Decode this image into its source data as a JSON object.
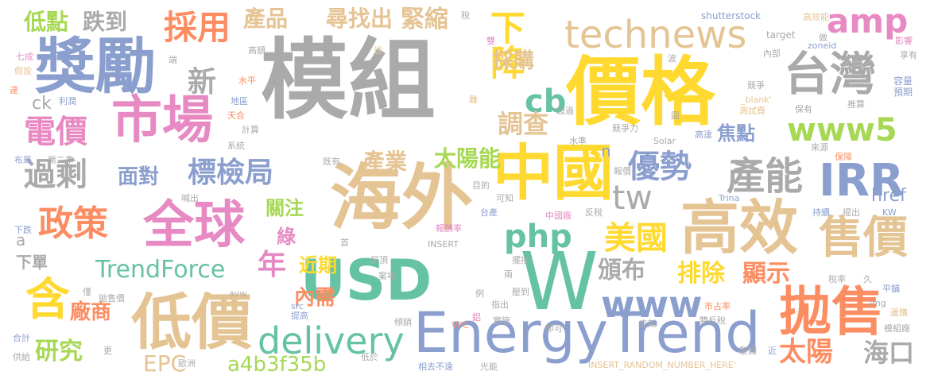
{
  "colors": {
    "gray": "#aaaaaa",
    "blue": "#8b9fcf",
    "green": "#66c2a5",
    "pink": "#e78ac3",
    "orange": "#fc8d62",
    "yellow": "#ffd92f",
    "tan": "#e5c494",
    "lime": "#a6d854"
  },
  "words": [
    {
      "text": "模組",
      "color": "gray"
    },
    {
      "text": "價格",
      "color": "yellow"
    },
    {
      "text": "海外",
      "color": "tan"
    },
    {
      "text": "中國",
      "color": "yellow"
    },
    {
      "text": "USD",
      "color": "green"
    },
    {
      "text": "W",
      "color": "green"
    },
    {
      "text": "EnergyTrend",
      "color": "blue"
    },
    {
      "text": "獎勵",
      "color": "blue"
    },
    {
      "text": "市場",
      "color": "pink"
    },
    {
      "text": "全球",
      "color": "pink"
    },
    {
      "text": "低價",
      "color": "tan"
    },
    {
      "text": "高效",
      "color": "tan"
    },
    {
      "text": "拋售",
      "color": "orange"
    },
    {
      "text": "technews",
      "color": "tan"
    },
    {
      "text": "台灣",
      "color": "gray"
    },
    {
      "text": "IRR",
      "color": "blue"
    },
    {
      "text": "售價",
      "color": "tan"
    },
    {
      "text": "www5",
      "color": "lime"
    },
    {
      "text": "產能",
      "color": "gray"
    },
    {
      "text": "delivery",
      "color": "green"
    },
    {
      "text": "www",
      "color": "blue"
    },
    {
      "text": "政策",
      "color": "orange"
    },
    {
      "text": "電價",
      "color": "pink"
    },
    {
      "text": "過剩",
      "color": "gray"
    },
    {
      "text": "含",
      "color": "yellow"
    },
    {
      "text": "amp",
      "color": "pink"
    },
    {
      "text": "php",
      "color": "green"
    },
    {
      "text": "優勢",
      "color": "blue"
    },
    {
      "text": "標檢局",
      "color": "blue"
    },
    {
      "text": "採用",
      "color": "orange"
    },
    {
      "text": "下降",
      "color": "yellow"
    },
    {
      "text": "tw",
      "color": "gray"
    },
    {
      "text": "美國",
      "color": "yellow"
    },
    {
      "text": "cb",
      "color": "green"
    },
    {
      "text": "TrendForce",
      "color": "green"
    },
    {
      "text": "年",
      "color": "pink"
    },
    {
      "text": "太陽",
      "color": "orange"
    },
    {
      "text": "新",
      "color": "gray"
    },
    {
      "text": "產品",
      "color": "tan"
    },
    {
      "text": "尋找出",
      "color": "tan"
    },
    {
      "text": "緊縮",
      "color": "tan"
    },
    {
      "text": "低點",
      "color": "lime"
    },
    {
      "text": "跌到",
      "color": "gray"
    },
    {
      "text": "調查",
      "color": "tan"
    },
    {
      "text": "採購",
      "color": "tan"
    },
    {
      "text": "焦點",
      "color": "blue"
    },
    {
      "text": "面對",
      "color": "blue"
    },
    {
      "text": "產業",
      "color": "tan"
    },
    {
      "text": "太陽能",
      "color": "lime"
    },
    {
      "text": "頒布",
      "color": "gray"
    },
    {
      "text": "排除",
      "color": "yellow"
    },
    {
      "text": "顯示",
      "color": "orange"
    },
    {
      "text": "內需",
      "color": "orange"
    },
    {
      "text": "廠商",
      "color": "orange"
    },
    {
      "text": "研究",
      "color": "lime"
    },
    {
      "text": "EPC",
      "color": "tan"
    },
    {
      "text": "a4b3f35b",
      "color": "lime"
    },
    {
      "text": "海口",
      "color": "gray"
    },
    {
      "text": "近期",
      "color": "yellow"
    },
    {
      "text": "關注",
      "color": "lime"
    },
    {
      "text": "綠",
      "color": "pink"
    },
    {
      "text": "href",
      "color": "blue"
    },
    {
      "text": "n",
      "color": "blue"
    },
    {
      "text": "ck",
      "color": "gray"
    },
    {
      "text": "a",
      "color": "gray"
    },
    {
      "text": "下單",
      "color": "gray"
    },
    {
      "text": "shutterstock",
      "color": "blue"
    },
    {
      "text": "高效能",
      "color": "tan"
    },
    {
      "text": "zoneid",
      "color": "blue"
    },
    {
      "text": "target",
      "color": "gray"
    },
    {
      "text": "做",
      "color": "gray"
    },
    {
      "text": "影響",
      "color": "pink"
    },
    {
      "text": "享有",
      "color": "gray"
    },
    {
      "text": "容量",
      "color": "blue"
    },
    {
      "text": "預期",
      "color": "blue"
    },
    {
      "text": "推算",
      "color": "gray"
    },
    {
      "text": "測試費",
      "color": "tan"
    },
    {
      "text": "_blank'",
      "color": "tan"
    },
    {
      "text": "保有",
      "color": "gray"
    },
    {
      "text": "高達",
      "color": "blue"
    },
    {
      "text": "來源",
      "color": "gray"
    },
    {
      "text": "保障",
      "color": "orange"
    },
    {
      "text": "持續",
      "color": "blue"
    },
    {
      "text": "提出",
      "color": "gray"
    },
    {
      "text": "KW",
      "color": "blue"
    },
    {
      "text": "平舖",
      "color": "blue"
    },
    {
      "text": "蘆購",
      "color": "tan"
    },
    {
      "text": "模組廠",
      "color": "gray"
    },
    {
      "text": "稅",
      "color": "gray"
    },
    {
      "text": "送",
      "color": "tan"
    },
    {
      "text": "雙",
      "color": "pink"
    },
    {
      "text": "內部",
      "color": "gray"
    },
    {
      "text": "波",
      "color": "gray"
    },
    {
      "text": "競爭",
      "color": "gray"
    },
    {
      "text": "高額",
      "color": "gray"
    },
    {
      "text": "七成",
      "color": "pink"
    },
    {
      "text": "端",
      "color": "gray"
    },
    {
      "text": "假設",
      "color": "tan"
    },
    {
      "text": "水平",
      "color": "orange"
    },
    {
      "text": "達",
      "color": "orange"
    },
    {
      "text": "利潤",
      "color": "blue"
    },
    {
      "text": "地區",
      "color": "blue"
    },
    {
      "text": "天合",
      "color": "orange"
    },
    {
      "text": "計算",
      "color": "gray"
    },
    {
      "text": "系統",
      "color": "gray"
    },
    {
      "text": "布局",
      "color": "blue"
    },
    {
      "text": "第二季",
      "color": "gray"
    },
    {
      "text": "超過",
      "color": "gray"
    },
    {
      "text": "競爭力",
      "color": "gray"
    },
    {
      "text": "Solar",
      "color": "gray"
    },
    {
      "text": "水準",
      "color": "gray"
    },
    {
      "text": "難",
      "color": "tan"
    },
    {
      "text": "圖",
      "color": "gray"
    },
    {
      "text": "既有",
      "color": "gray"
    },
    {
      "text": "報價",
      "color": "gray"
    },
    {
      "text": "Trina",
      "color": "blue"
    },
    {
      "text": "喊出",
      "color": "gray"
    },
    {
      "text": "目的",
      "color": "gray"
    },
    {
      "text": "可知",
      "color": "gray"
    },
    {
      "text": "反稅",
      "color": "gray"
    },
    {
      "text": "中國廠",
      "color": "pink"
    },
    {
      "text": "台產",
      "color": "blue"
    },
    {
      "text": "報酬率",
      "color": "pink"
    },
    {
      "text": "下跌",
      "color": "blue"
    },
    {
      "text": "INSERT",
      "color": "gray"
    },
    {
      "text": "首",
      "color": "gray"
    },
    {
      "text": "屋頂",
      "color": "gray"
    },
    {
      "text": "擺接",
      "color": "gray"
    },
    {
      "text": "案場",
      "color": "gray"
    },
    {
      "text": "兩",
      "color": "gray"
    },
    {
      "text": "壓到",
      "color": "gray"
    },
    {
      "text": "稅率",
      "color": "gray"
    },
    {
      "text": "久",
      "color": "gray"
    },
    {
      "text": "img",
      "color": "gray"
    },
    {
      "text": "僅",
      "color": "gray"
    },
    {
      "text": "拋售價",
      "color": "gray"
    },
    {
      "text": "avw",
      "color": "gray"
    },
    {
      "text": "例",
      "color": "gray"
    },
    {
      "text": "指出",
      "color": "gray"
    },
    {
      "text": "市占率",
      "color": "orange"
    },
    {
      "text": "src",
      "color": "blue"
    },
    {
      "text": "提高",
      "color": "blue"
    },
    {
      "text": "雙反稅",
      "color": "gray"
    },
    {
      "text": "支架",
      "color": "gray"
    },
    {
      "text": "實施",
      "color": "gray"
    },
    {
      "text": "鋁",
      "color": "pink"
    },
    {
      "text": "傾銷",
      "color": "gray"
    },
    {
      "text": "VPC",
      "color": "orange"
    },
    {
      "text": "即可",
      "color": "gray"
    },
    {
      "text": "合計",
      "color": "blue"
    },
    {
      "text": "更",
      "color": "gray"
    },
    {
      "text": "供給",
      "color": "gray"
    },
    {
      "text": "歐洲",
      "color": "gray"
    },
    {
      "text": "低於",
      "color": "gray"
    },
    {
      "text": "相去不遠",
      "color": "blue"
    },
    {
      "text": "光能",
      "color": "gray"
    },
    {
      "text": "整體",
      "color": "gray"
    },
    {
      "text": "近",
      "color": "blue"
    },
    {
      "text": "INSERT_RANDOM_NUMBER_HERE'",
      "color": "tan"
    }
  ]
}
